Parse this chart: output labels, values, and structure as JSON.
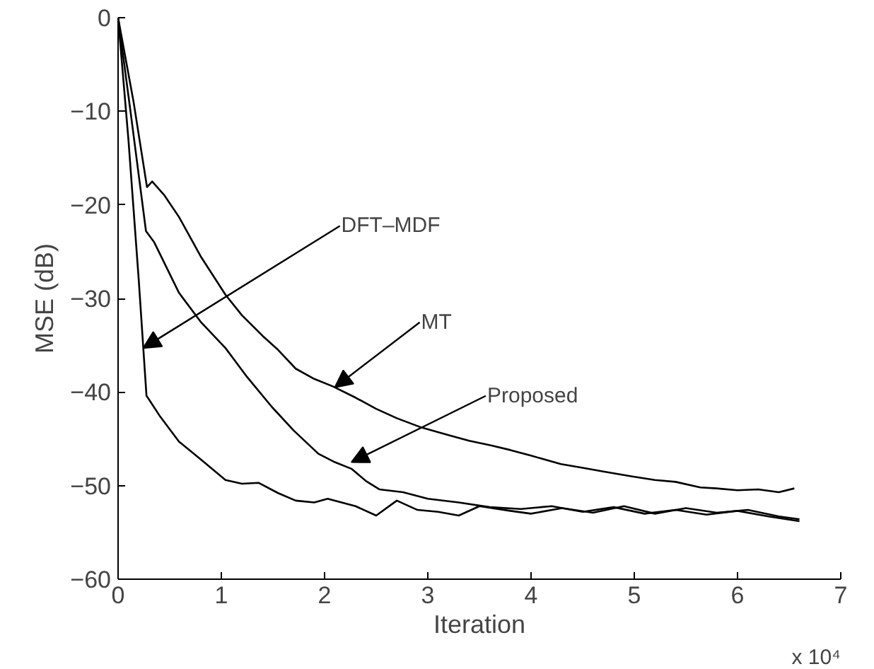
{
  "chart_data": {
    "type": "line",
    "xlabel": "Iteration",
    "ylabel": "MSE (dB)",
    "xlim": [
      0,
      7
    ],
    "ylim": [
      -60,
      0
    ],
    "xticks": [
      0,
      1,
      2,
      3,
      4,
      5,
      6,
      7
    ],
    "yticks": [
      -60,
      -50,
      -40,
      -30,
      -20,
      -10,
      0
    ],
    "grid": false,
    "marker": "none",
    "line_style": "solid",
    "series": [
      {
        "color": "#000000",
        "x": [
          0,
          0.15,
          0.28,
          0.33,
          0.45,
          0.59,
          0.8,
          1.04,
          1.2,
          1.4,
          1.55,
          1.72,
          1.9,
          2.08,
          2.3,
          2.5,
          2.7,
          2.94,
          3.2,
          3.4,
          3.61,
          3.8,
          4.0,
          4.29,
          4.5,
          4.7,
          4.97,
          5.2,
          5.4,
          5.64,
          5.8,
          6.0,
          6.2,
          6.4,
          6.55
        ],
        "values": [
          0,
          -9,
          -18.1,
          -17.5,
          -19,
          -21.3,
          -25.5,
          -29.6,
          -31.8,
          -34,
          -35.5,
          -37.5,
          -38.6,
          -39.4,
          -40.6,
          -41.8,
          -42.8,
          -43.8,
          -44.6,
          -45.2,
          -45.7,
          -46.2,
          -46.8,
          -47.7,
          -48.1,
          -48.5,
          -49,
          -49.4,
          -49.6,
          -50.2,
          -50.3,
          -50.5,
          -50.4,
          -50.7,
          -50.3
        ]
      },
      {
        "color": "#000000",
        "x": [
          0,
          0.12,
          0.27,
          0.35,
          0.59,
          0.8,
          1.04,
          1.25,
          1.49,
          1.7,
          1.94,
          2.1,
          2.26,
          2.4,
          2.53,
          2.76,
          3.0,
          3.3,
          3.6,
          3.9,
          4.2,
          4.5,
          4.8,
          5.1,
          5.4,
          5.7,
          6.0,
          6.3,
          6.6
        ],
        "values": [
          0,
          -10,
          -22.8,
          -24,
          -29.4,
          -32.5,
          -35.3,
          -38.4,
          -41.6,
          -44.1,
          -46.6,
          -47.5,
          -48.2,
          -49.5,
          -50.4,
          -50.7,
          -51.4,
          -51.8,
          -52.3,
          -52.5,
          -52.2,
          -52.8,
          -52.3,
          -53,
          -52.6,
          -53.1,
          -52.7,
          -53.3,
          -53.8
        ]
      },
      {
        "color": "#000000",
        "x": [
          0,
          0.1,
          0.2,
          0.275,
          0.3,
          0.4,
          0.59,
          0.8,
          1.04,
          1.2,
          1.36,
          1.55,
          1.72,
          1.9,
          2.03,
          2.3,
          2.5,
          2.7,
          2.9,
          3.1,
          3.3,
          3.5,
          3.8,
          4.0,
          4.3,
          4.6,
          4.9,
          5.2,
          5.5,
          5.8,
          6.1,
          6.4,
          6.6
        ],
        "values": [
          0,
          -13,
          -28,
          -40.4,
          -40.8,
          -42.5,
          -45.3,
          -47.2,
          -49.4,
          -49.8,
          -49.7,
          -50.8,
          -51.6,
          -51.8,
          -51.4,
          -52.2,
          -53.2,
          -51.6,
          -52.6,
          -52.8,
          -53.2,
          -52.2,
          -52.7,
          -53,
          -52.4,
          -52.9,
          -52.2,
          -53,
          -52.4,
          -52.9,
          -52.6,
          -53.3,
          -53.6
        ]
      }
    ],
    "annotations": [
      {
        "text": "DFT–MDF",
        "x": 0.244,
        "y": -35.3
      },
      {
        "text": "MT",
        "x": 2.1,
        "y": -39.5
      },
      {
        "text": "Proposed",
        "x": 2.26,
        "y": -47.5
      },
      "x 10⁴"
    ]
  }
}
